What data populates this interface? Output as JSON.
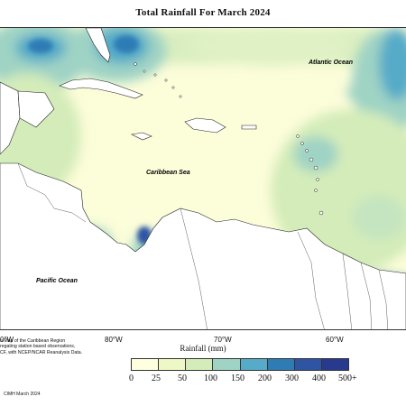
{
  "title": "Total Rainfall For March 2024",
  "labels": {
    "atlantic": "Atlantic Ocean",
    "caribbean": "Caribbean Sea",
    "pacific": "Pacific Ocean"
  },
  "longitude_ticks": [
    "0°W",
    "80°W",
    "70°W",
    "60°W"
  ],
  "legend": {
    "title": "Rainfall (mm)",
    "labels": [
      "0",
      "25",
      "50",
      "100",
      "150",
      "200",
      "300",
      "400",
      "500+"
    ],
    "colors": [
      "#ffffe0",
      "#eef8c6",
      "#d4ecb9",
      "#9fd3c4",
      "#55abc8",
      "#2f7cb5",
      "#2f54a4",
      "#283a8e",
      "#141d5e"
    ]
  },
  "note": [
    "n Map of the Caribbean Region",
    "regating station based observations,",
    "CF, with NCEP/NCAR Reanalysis Data."
  ],
  "credit": "CIMH March 2024"
}
